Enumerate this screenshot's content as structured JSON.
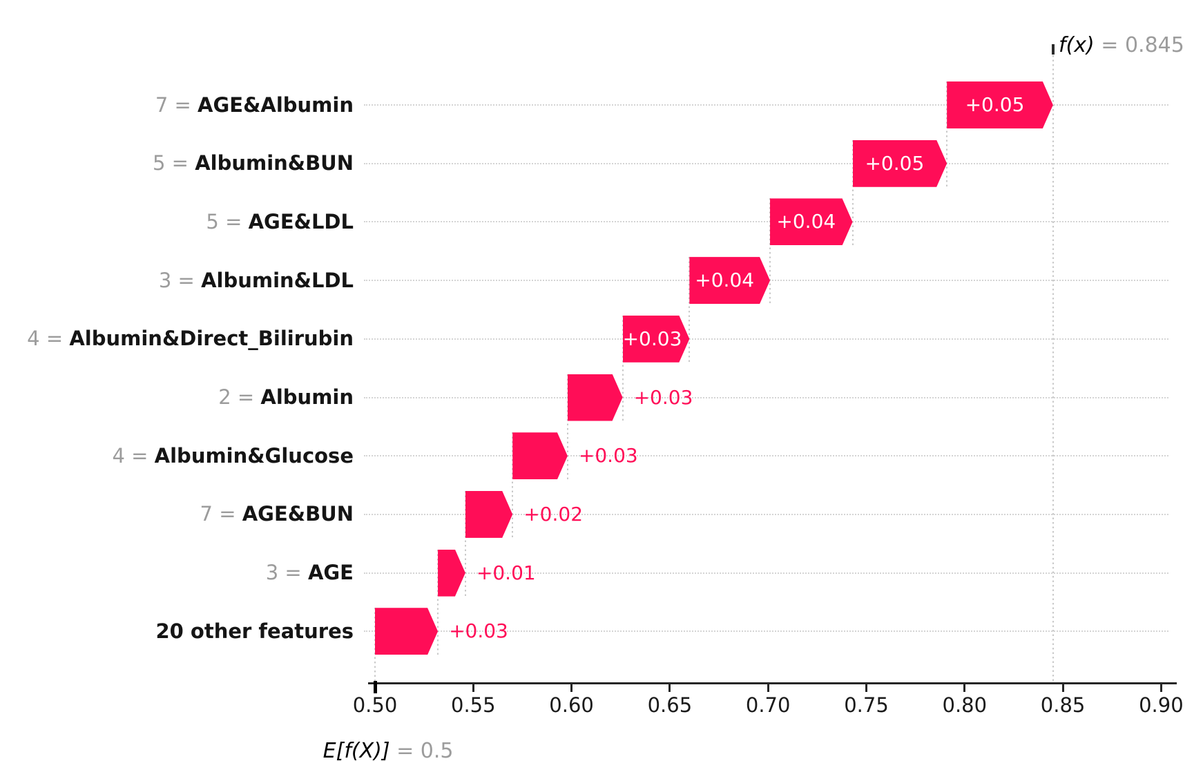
{
  "chart_data": {
    "type": "waterfall",
    "description": "SHAP waterfall plot of additive feature contributions",
    "fx": {
      "func_text": "f(x)",
      "equals_text": "= 0.845",
      "value": 0.845
    },
    "base": {
      "func_text": "E[f(X)]",
      "equals_text": "= 0.5",
      "value": 0.5
    },
    "x_axis": {
      "min": 0.5,
      "max": 0.9,
      "tick_step": 0.05,
      "tick_values": [
        0.5,
        0.55,
        0.6,
        0.65,
        0.7,
        0.75,
        0.8,
        0.85,
        0.9
      ],
      "tick_labels": [
        "0.50",
        "0.55",
        "0.60",
        "0.65",
        "0.70",
        "0.75",
        "0.80",
        "0.85",
        "0.90"
      ]
    },
    "rows": [
      {
        "prefix": "7 = ",
        "name": "AGE&Albumin",
        "value_label": "+0.05",
        "value": 0.054,
        "start": 0.791,
        "end": 0.845,
        "label_inside": true
      },
      {
        "prefix": "5 = ",
        "name": "Albumin&BUN",
        "value_label": "+0.05",
        "value": 0.048,
        "start": 0.743,
        "end": 0.791,
        "label_inside": true
      },
      {
        "prefix": "5 = ",
        "name": "AGE&LDL",
        "value_label": "+0.04",
        "value": 0.042,
        "start": 0.701,
        "end": 0.743,
        "label_inside": true
      },
      {
        "prefix": "3 = ",
        "name": "Albumin&LDL",
        "value_label": "+0.04",
        "value": 0.041,
        "start": 0.66,
        "end": 0.701,
        "label_inside": true
      },
      {
        "prefix": "4 = ",
        "name": "Albumin&Direct_Bilirubin",
        "value_label": "+0.03",
        "value": 0.034,
        "start": 0.626,
        "end": 0.66,
        "label_inside": true
      },
      {
        "prefix": "2 = ",
        "name": "Albumin",
        "value_label": "+0.03",
        "value": 0.028,
        "start": 0.598,
        "end": 0.626,
        "label_inside": false
      },
      {
        "prefix": "4 = ",
        "name": "Albumin&Glucose",
        "value_label": "+0.03",
        "value": 0.028,
        "start": 0.57,
        "end": 0.598,
        "label_inside": false
      },
      {
        "prefix": "7 = ",
        "name": "AGE&BUN",
        "value_label": "+0.02",
        "value": 0.024,
        "start": 0.546,
        "end": 0.57,
        "label_inside": false
      },
      {
        "prefix": "3 = ",
        "name": "AGE",
        "value_label": "+0.01",
        "value": 0.014,
        "start": 0.532,
        "end": 0.546,
        "label_inside": false
      },
      {
        "prefix": "",
        "name": "20 other features",
        "value_label": "+0.03",
        "value": 0.032,
        "start": 0.5,
        "end": 0.532,
        "label_inside": false
      }
    ],
    "colors": {
      "bar": "#ff0d57",
      "value_inside_text": "#ffffff",
      "value_outside_text": "#ff0d57",
      "muted_text": "#9c9c9c",
      "label_text": "#151515",
      "dotted_line": "#c9c9c9",
      "axis": "#262626"
    },
    "layout_hints": {
      "grid": "dotted horizontal per row",
      "legend": "none"
    }
  }
}
